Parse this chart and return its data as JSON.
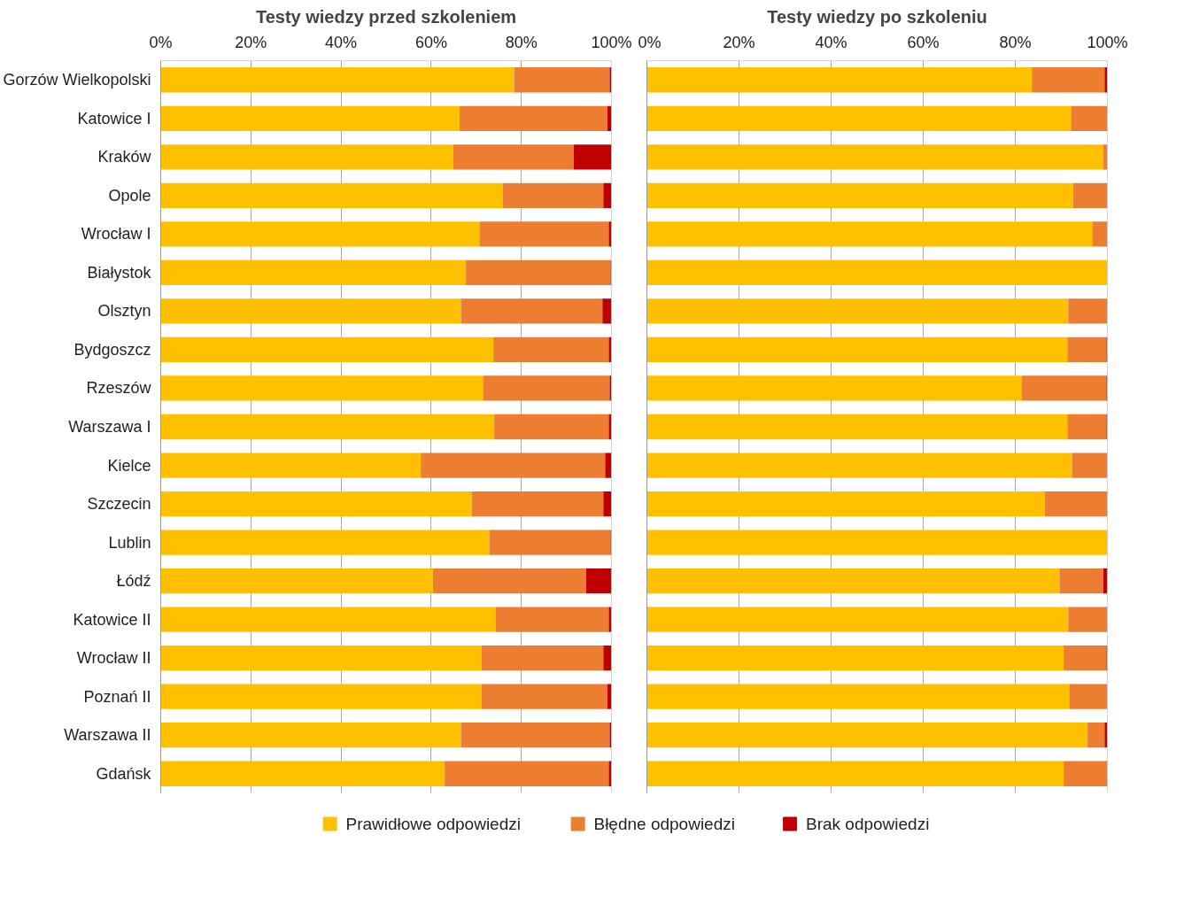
{
  "chart_data": [
    {
      "type": "bar",
      "orientation": "horizontal",
      "stacked": true,
      "title": "Testy wiedzy przed szkoleniem",
      "categories": [
        "Gorzów Wielkopolski",
        "Katowice I",
        "Kraków",
        "Opole",
        "Wrocław I",
        "Białystok",
        "Olsztyn",
        "Bydgoszcz",
        "Rzeszów",
        "Warszawa I",
        "Kielce",
        "Szczecin",
        "Lublin",
        "Łódź",
        "Katowice II",
        "Wrocław II",
        "Poznań II",
        "Warszawa II",
        "Gdańsk"
      ],
      "series": [
        {
          "name": "Prawidłowe odpowiedzi",
          "color": "#ffc000",
          "values": [
            78.4,
            66.3,
            64.9,
            75.9,
            70.7,
            67.7,
            66.6,
            73.8,
            71.5,
            74.0,
            57.7,
            69.0,
            72.9,
            60.4,
            74.3,
            71.2,
            71.2,
            66.6,
            63.0
          ]
        },
        {
          "name": "Błędne odpowiedzi",
          "color": "#ed7d31",
          "values": [
            21.2,
            32.8,
            26.7,
            22.3,
            28.7,
            32.1,
            31.4,
            25.6,
            28.1,
            25.4,
            40.9,
            29.2,
            26.9,
            34.0,
            25.1,
            27.0,
            27.9,
            33.0,
            36.4
          ]
        },
        {
          "name": "Brak odpowiedzi",
          "color": "#c00000",
          "values": [
            0.4,
            0.9,
            8.4,
            1.8,
            0.6,
            0.2,
            2.0,
            0.6,
            0.4,
            0.6,
            1.4,
            1.8,
            0.2,
            5.6,
            0.6,
            1.8,
            0.9,
            0.4,
            0.6
          ]
        }
      ],
      "xlim": [
        0,
        100
      ],
      "xticks": [
        {
          "value": 0,
          "label": "0%"
        },
        {
          "value": 20,
          "label": "20%"
        },
        {
          "value": 40,
          "label": "40%"
        },
        {
          "value": 60,
          "label": "60%"
        },
        {
          "value": 80,
          "label": "80%"
        },
        {
          "value": 100,
          "label": "100%"
        }
      ],
      "grid": "x",
      "legend": "bottom"
    },
    {
      "type": "bar",
      "orientation": "horizontal",
      "stacked": true,
      "title": "Testy wiedzy po szkoleniu",
      "categories": [
        null,
        null,
        null,
        null,
        null,
        null,
        null,
        null,
        null,
        null,
        null,
        null,
        null,
        null,
        null,
        null,
        null,
        null,
        null
      ],
      "series": [
        {
          "color": "#ffc000",
          "values": [
            83.6,
            92.1,
            99.1,
            92.6,
            96.7,
            100,
            91.5,
            91.3,
            81.4,
            91.3,
            92.3,
            86.4,
            100,
            89.6,
            91.5,
            90.5,
            91.7,
            95.7,
            90.5
          ]
        },
        {
          "color": "#ed7d31",
          "values": [
            15.8,
            7.9,
            0.9,
            7.4,
            3.3,
            0,
            8.5,
            8.5,
            18.4,
            8.5,
            7.7,
            13.6,
            0,
            9.5,
            8.5,
            9.3,
            8.3,
            3.7,
            9.5
          ]
        },
        {
          "color": "#c00000",
          "values": [
            0.6,
            0,
            0,
            0,
            0,
            0,
            0,
            0.2,
            0.2,
            0.2,
            0,
            0,
            0,
            0.9,
            0,
            0.2,
            0,
            0.6,
            0
          ]
        }
      ],
      "xlim": [
        0,
        100
      ],
      "xticks": [
        {
          "value": 0,
          "label": "0%"
        },
        {
          "value": 20,
          "label": "20%"
        },
        {
          "value": 40,
          "label": "40%"
        },
        {
          "value": 60,
          "label": "60%"
        },
        {
          "value": 80,
          "label": "80%"
        },
        {
          "value": 100,
          "label": "100%"
        }
      ],
      "grid": "x",
      "tick_labels": "x"
    }
  ]
}
